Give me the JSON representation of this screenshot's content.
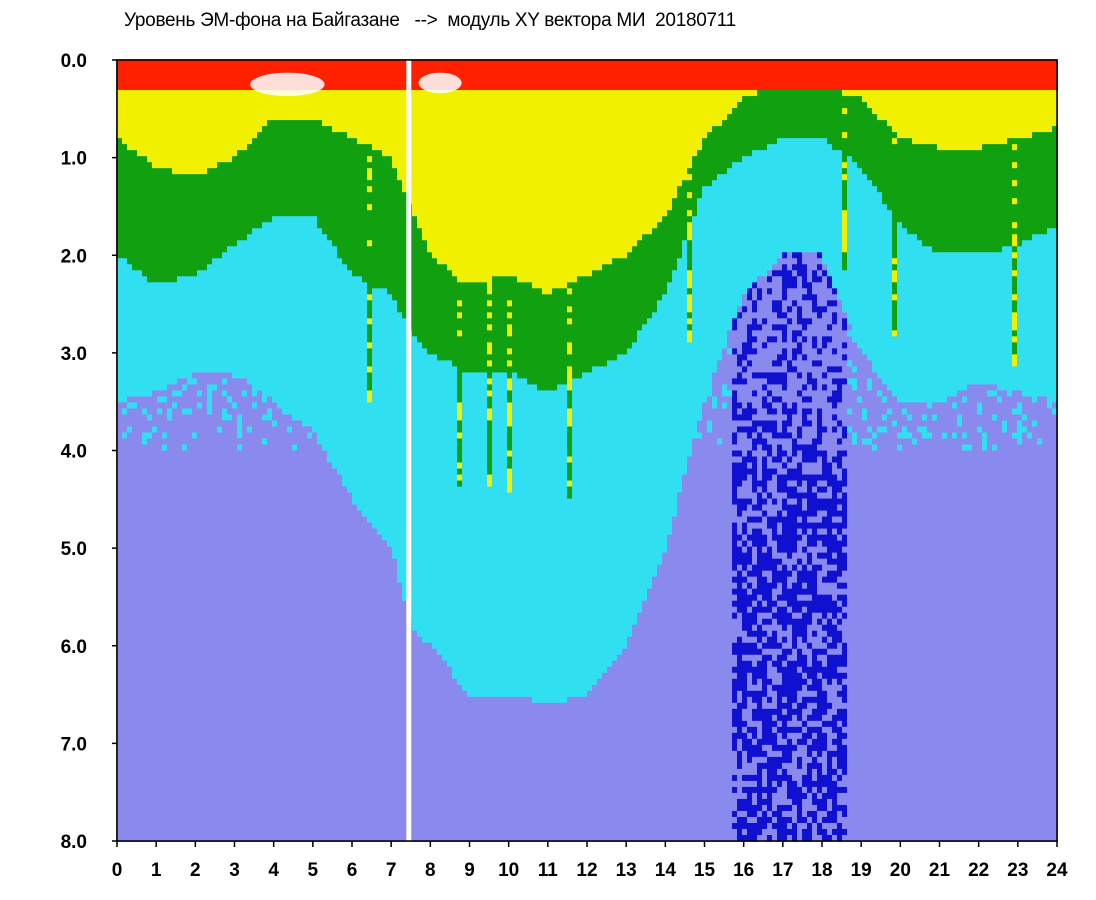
{
  "chart_data": {
    "type": "heatmap",
    "title": "Уровень ЭМ-фона на Байгазане   -->  модуль XY вектора МИ  20180711",
    "xlabel": "",
    "ylabel": "",
    "xlim": [
      0,
      24
    ],
    "ylim": [
      0.0,
      8.0
    ],
    "y_inverted": true,
    "x_ticks": [
      "0",
      "1",
      "2",
      "3",
      "4",
      "5",
      "6",
      "7",
      "8",
      "9",
      "10",
      "11",
      "12",
      "13",
      "14",
      "15",
      "16",
      "17",
      "18",
      "19",
      "20",
      "21",
      "22",
      "23",
      "24"
    ],
    "y_ticks": [
      "0.0",
      "1.0",
      "2.0",
      "3.0",
      "4.0",
      "5.0",
      "6.0",
      "7.0",
      "8.0"
    ],
    "grid": false,
    "colormap": [
      "#1010d0",
      "#8a8aee",
      "#30e0f0",
      "#10a010",
      "#f0f000",
      "#ff2000"
    ],
    "gap_color": "#ffffff",
    "notes_hours": {
      "data_gap_hours": [
        7.45
      ],
      "spike_hours": [
        6.5,
        8.8,
        9.5,
        10.0,
        11.6,
        14.6,
        18.6,
        19.8,
        22.9
      ],
      "strong_level_hours": [
        [
          7.5,
          14.5
        ]
      ],
      "quiet_level_hours": [
        [
          15.7,
          18.7
        ]
      ]
    },
    "intensity_profile": {
      "hours": [
        0,
        1,
        2,
        3,
        4,
        5,
        6,
        7,
        7.5,
        8,
        9,
        10,
        11,
        12,
        13,
        14,
        15,
        16,
        17,
        18,
        19,
        20,
        21,
        22,
        23,
        24
      ],
      "yellow_extent": [
        0.8,
        1.1,
        1.2,
        1.0,
        0.6,
        0.6,
        0.8,
        1.0,
        1.5,
        2.0,
        2.3,
        2.2,
        2.4,
        2.2,
        2.0,
        1.6,
        0.8,
        0.4,
        0.2,
        0.2,
        0.4,
        0.8,
        0.9,
        0.9,
        0.8,
        0.7
      ],
      "green_extent": [
        2.0,
        2.3,
        2.2,
        1.9,
        1.6,
        1.6,
        2.2,
        2.4,
        2.8,
        3.0,
        3.2,
        3.2,
        3.4,
        3.2,
        3.0,
        2.4,
        1.3,
        1.0,
        0.8,
        0.8,
        1.1,
        1.7,
        2.0,
        2.0,
        1.9,
        1.7
      ],
      "cyan_extent": [
        3.5,
        3.4,
        3.2,
        3.2,
        3.5,
        3.8,
        4.5,
        5.0,
        5.8,
        6.0,
        6.5,
        6.5,
        6.6,
        6.5,
        6.0,
        5.0,
        3.5,
        2.4,
        2.0,
        2.0,
        3.0,
        3.5,
        3.5,
        3.3,
        3.4,
        3.5
      ]
    }
  }
}
